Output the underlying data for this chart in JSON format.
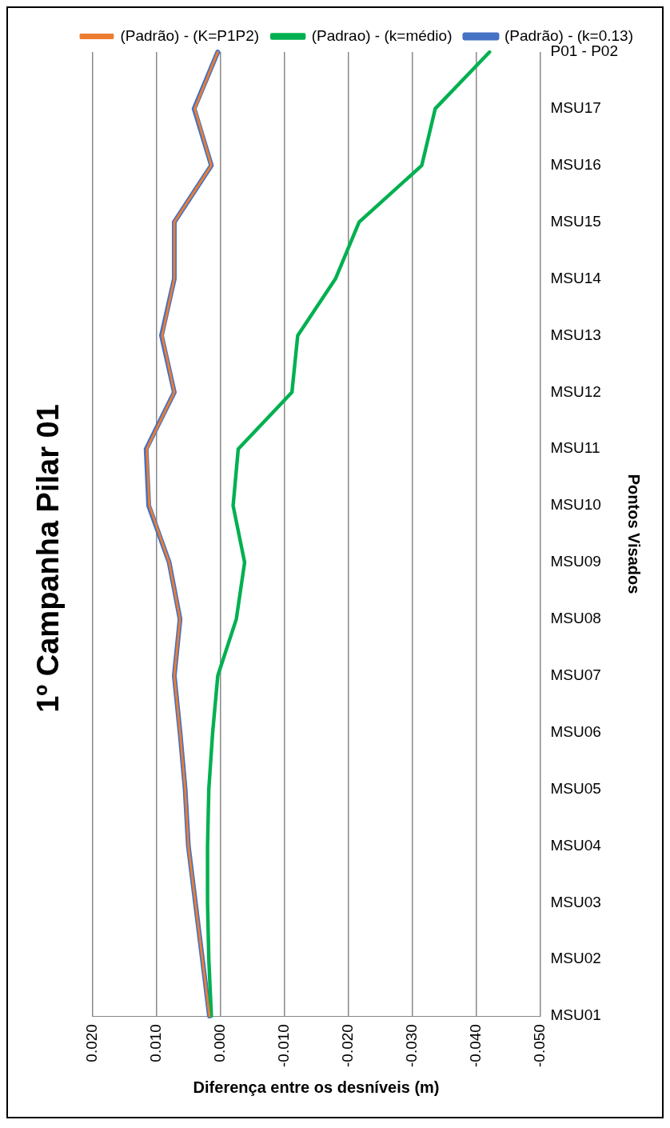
{
  "chart_data": {
    "type": "line",
    "orientation": "horizontal",
    "title": "1º Campanha Pilar 01",
    "xlabel": "Diferença entre os desníveis (m)",
    "ylabel": "Pontos Visados",
    "categories": [
      "P01 - P02",
      "MSU17",
      "MSU16",
      "MSU15",
      "MSU14",
      "MSU13",
      "MSU12",
      "MSU11",
      "MSU10",
      "MSU09",
      "MSU08",
      "MSU07",
      "MSU06",
      "MSU05",
      "MSU04",
      "MSU03",
      "MSU02",
      "MSU01"
    ],
    "series": [
      {
        "name": "(Padrão) - (k=0.13)",
        "color": "#4472c4",
        "values": [
          0.0004,
          0.0041,
          0.0014,
          0.0072,
          0.0072,
          0.0092,
          0.0072,
          0.0116,
          0.0112,
          0.008,
          0.0063,
          0.0072,
          0.0063,
          0.0055,
          0.005,
          0.0039,
          0.0028,
          0.0017
        ]
      },
      {
        "name": "(Padrao) - (k=médio)",
        "color": "#00b050",
        "values": [
          -0.0421,
          -0.0336,
          -0.0315,
          -0.0217,
          -0.018,
          -0.0121,
          -0.0112,
          -0.0028,
          -0.002,
          -0.0038,
          -0.0025,
          0.0004,
          0.0012,
          0.0018,
          0.002,
          0.002,
          0.0018,
          0.0014
        ]
      },
      {
        "name": "(Padrão) - (K=P1P2)",
        "color": "#ed7d31",
        "values": [
          0.0004,
          0.004,
          0.0014,
          0.0072,
          0.0072,
          0.0091,
          0.0072,
          0.0115,
          0.0111,
          0.008,
          0.0063,
          0.0072,
          0.0063,
          0.0055,
          0.005,
          0.0039,
          0.0028,
          0.0017
        ]
      }
    ],
    "xlim": [
      0.02,
      -0.05
    ],
    "xticks": [
      {
        "value": 0.02,
        "label": "0.020"
      },
      {
        "value": 0.01,
        "label": "0.010"
      },
      {
        "value": 0,
        "label": "0.000"
      },
      {
        "value": -0.01,
        "label": "-0.010"
      },
      {
        "value": -0.02,
        "label": "-0.020"
      },
      {
        "value": -0.03,
        "label": "-0.030"
      },
      {
        "value": -0.04,
        "label": "-0.040"
      },
      {
        "value": -0.05,
        "label": "-0.050"
      }
    ],
    "grid": "x",
    "legend": "top right",
    "marker": "none",
    "line_style": "solid"
  }
}
